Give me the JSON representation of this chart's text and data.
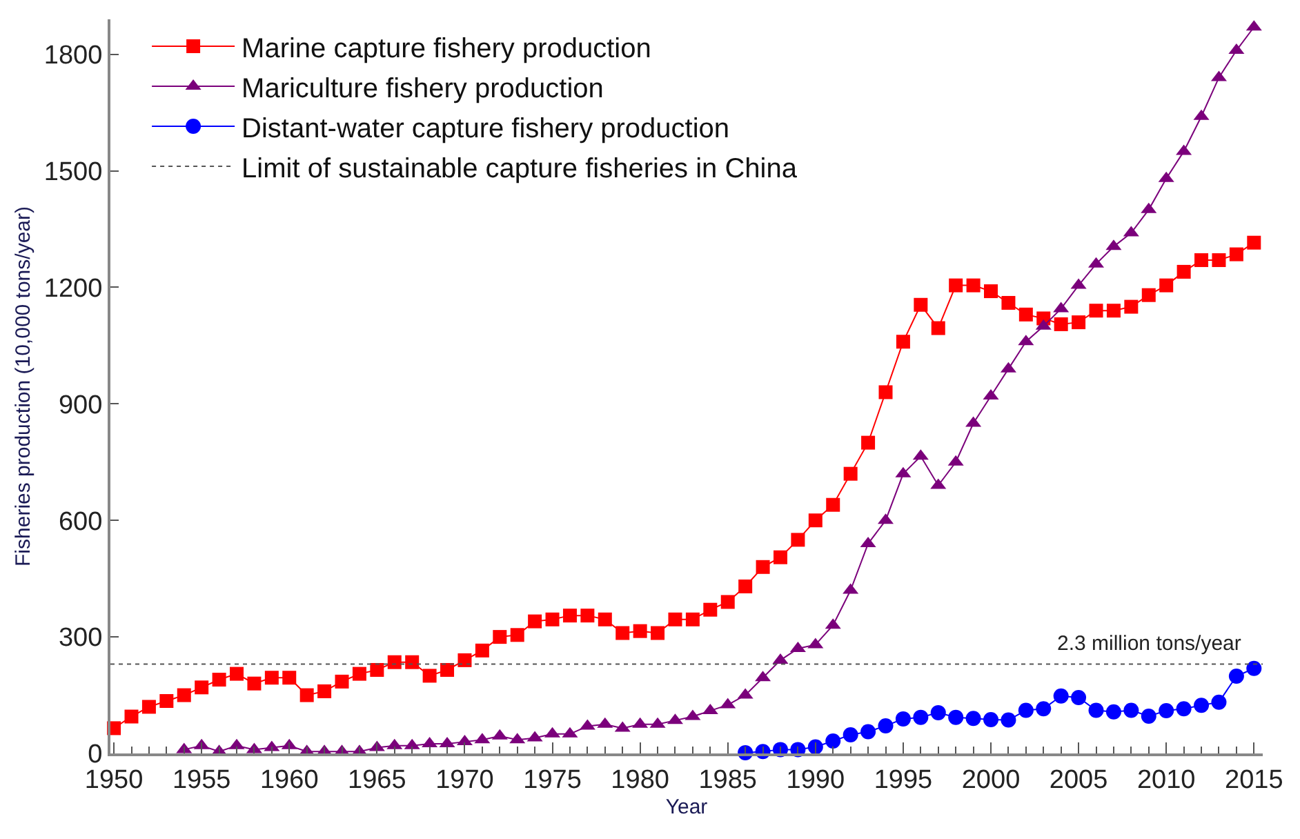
{
  "chart_data": {
    "type": "line",
    "xlabel": "Year",
    "ylabel": "Fisheries production (10,000 tons/year)",
    "xlim": [
      1949.8,
      2015.5
    ],
    "xticks": [
      1950,
      1955,
      1960,
      1965,
      1970,
      1975,
      1980,
      1985,
      1990,
      1995,
      2000,
      2005,
      2010,
      2015
    ],
    "ylim": [
      0,
      1890
    ],
    "yticks": [
      0,
      300,
      600,
      900,
      1200,
      1500,
      1800
    ],
    "legend": "top left",
    "line_style": "solid",
    "series": [
      {
        "name": "Marine capture fishery production",
        "color": "#ff0000",
        "marker": "square",
        "x": [
          1950,
          1951,
          1952,
          1953,
          1954,
          1955,
          1956,
          1957,
          1958,
          1959,
          1960,
          1961,
          1962,
          1963,
          1964,
          1965,
          1966,
          1967,
          1968,
          1969,
          1970,
          1971,
          1972,
          1973,
          1974,
          1975,
          1976,
          1977,
          1978,
          1979,
          1980,
          1981,
          1982,
          1983,
          1984,
          1985,
          1986,
          1987,
          1988,
          1989,
          1990,
          1991,
          1992,
          1993,
          1994,
          1995,
          1996,
          1997,
          1998,
          1999,
          2000,
          2001,
          2002,
          2003,
          2004,
          2005,
          2006,
          2007,
          2008,
          2009,
          2010,
          2011,
          2012,
          2013,
          2014,
          2015
        ],
        "values": [
          65,
          95,
          120,
          135,
          150,
          170,
          190,
          205,
          180,
          195,
          195,
          150,
          160,
          185,
          205,
          215,
          235,
          235,
          200,
          215,
          240,
          265,
          300,
          305,
          340,
          345,
          355,
          355,
          345,
          310,
          315,
          310,
          345,
          345,
          370,
          390,
          430,
          480,
          505,
          550,
          600,
          640,
          720,
          800,
          930,
          1060,
          1155,
          1095,
          1205,
          1205,
          1190,
          1160,
          1130,
          1120,
          1105,
          1110,
          1140,
          1140,
          1150,
          1180,
          1205,
          1240,
          1270,
          1270,
          1285,
          1315
        ]
      },
      {
        "name": "Mariculture fishery production",
        "color": "#7b007b",
        "marker": "triangle",
        "x": [
          1954,
          1955,
          1956,
          1957,
          1958,
          1959,
          1960,
          1961,
          1962,
          1963,
          1964,
          1965,
          1966,
          1967,
          1968,
          1969,
          1970,
          1971,
          1972,
          1973,
          1974,
          1975,
          1976,
          1977,
          1978,
          1979,
          1980,
          1981,
          1982,
          1983,
          1984,
          1985,
          1986,
          1987,
          1988,
          1989,
          1990,
          1991,
          1992,
          1993,
          1994,
          1995,
          1996,
          1997,
          1998,
          1999,
          2000,
          2001,
          2002,
          2003,
          2004,
          2005,
          2006,
          2007,
          2008,
          2009,
          2010,
          2011,
          2012,
          2013,
          2014,
          2015
        ],
        "values": [
          10,
          20,
          5,
          20,
          10,
          15,
          20,
          5,
          5,
          5,
          5,
          15,
          20,
          20,
          25,
          25,
          30,
          35,
          45,
          35,
          40,
          50,
          50,
          70,
          75,
          65,
          75,
          75,
          85,
          95,
          110,
          125,
          150,
          195,
          240,
          270,
          280,
          330,
          420,
          540,
          600,
          720,
          765,
          690,
          750,
          850,
          920,
          990,
          1060,
          1100,
          1145,
          1205,
          1260,
          1305,
          1340,
          1400,
          1480,
          1550,
          1640,
          1740,
          1810,
          1870
        ]
      },
      {
        "name": "Distant-water capture fishery production",
        "color": "#0000ff",
        "marker": "circle",
        "x": [
          1986,
          1987,
          1988,
          1989,
          1990,
          1991,
          1992,
          1993,
          1994,
          1995,
          1996,
          1997,
          1998,
          1999,
          2000,
          2001,
          2002,
          2003,
          2004,
          2005,
          2006,
          2007,
          2008,
          2009,
          2010,
          2011,
          2012,
          2013,
          2014,
          2015
        ],
        "values": [
          2,
          5,
          10,
          10,
          17,
          32,
          48,
          56,
          71,
          89,
          93,
          105,
          93,
          90,
          87,
          86,
          111,
          115,
          148,
          144,
          111,
          107,
          111,
          96,
          110,
          115,
          124,
          132,
          199,
          219
        ]
      }
    ],
    "ref_lines": [
      {
        "axis": "y",
        "value": 230,
        "label": "Limit of sustainable capture fisheries in China",
        "color": "#555555",
        "line_style": "dotted"
      }
    ],
    "annotations": [
      {
        "text": "2.3 million tons/year",
        "x": 2009,
        "y": 230
      }
    ]
  }
}
